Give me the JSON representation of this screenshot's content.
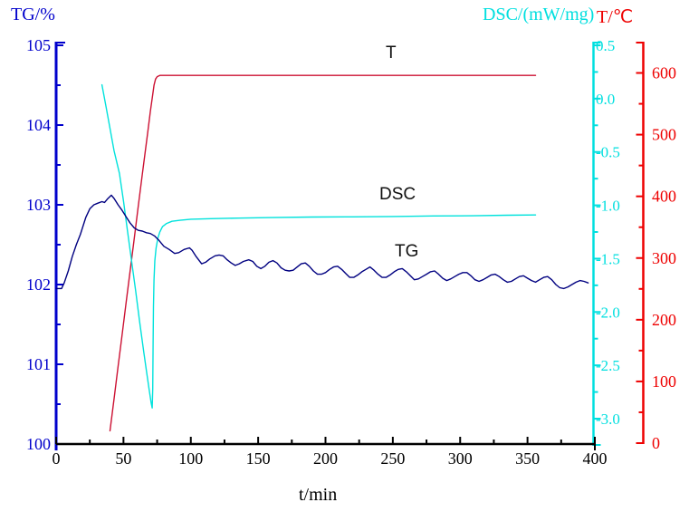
{
  "colors": {
    "background": "#FFFFFF",
    "tg_axis": "#0000CC",
    "tg_curve": "#000080",
    "dsc_axis": "#00DFDF",
    "dsc_curve": "#00E2DC",
    "temp_axis": "#EE0000",
    "temp_curve": "#CC1133",
    "x_axis": "#000000",
    "curve_label_text": "#111111"
  },
  "chart_data": {
    "type": "line",
    "grid": false,
    "legend": "inline-text-labels",
    "x_axis": {
      "title": "t/min",
      "range": [
        0,
        400
      ],
      "tick_values": [
        0,
        50,
        100,
        150,
        200,
        250,
        300,
        350,
        400
      ],
      "tick_labels": [
        "0",
        "50",
        "100",
        "150",
        "200",
        "250",
        "300",
        "350",
        "400"
      ],
      "minor_tick_step": 25
    },
    "y_axes": [
      {
        "id": "tg",
        "title": "TG/%",
        "side": "left",
        "range": [
          100,
          105
        ],
        "tick_values": [
          105,
          104,
          103,
          102,
          101,
          100
        ],
        "tick_labels": [
          "105",
          "104",
          "103",
          "102",
          "101",
          "100"
        ],
        "minor_tick_step": 0.5,
        "color_key": "tg_axis"
      },
      {
        "id": "dsc",
        "title": "DSC/(mW/mg)",
        "side": "right_inner",
        "range": [
          -3.25,
          0.5
        ],
        "tick_values": [
          0.5,
          0,
          -0.5,
          -1,
          -1.5,
          -2,
          -2.5,
          -3
        ],
        "tick_labels": [
          "0.5",
          "0.0",
          "-0.5",
          "-1.0",
          "-1.5",
          "-2.0",
          "-2.5",
          "-3.0"
        ],
        "minor_tick_step": 0.25,
        "color_key": "dsc_axis"
      },
      {
        "id": "temp",
        "title": "T/℃",
        "side": "right_outer",
        "range": [
          0,
          650
        ],
        "tick_values": [
          600,
          500,
          400,
          300,
          200,
          100,
          0
        ],
        "tick_labels": [
          "600",
          "500",
          "400",
          "300",
          "200",
          "100",
          "0"
        ],
        "minor_tick_step": 50,
        "color_key": "temp_axis"
      }
    ],
    "series": [
      {
        "name": "T",
        "y_axis": "temp",
        "color_key": "temp_curve",
        "points": [
          [
            40,
            20
          ],
          [
            43,
            72
          ],
          [
            46,
            124
          ],
          [
            49,
            176
          ],
          [
            52,
            228
          ],
          [
            55,
            280
          ],
          [
            58,
            332
          ],
          [
            61,
            384
          ],
          [
            64,
            436
          ],
          [
            66,
            470
          ],
          [
            68,
            504
          ],
          [
            70,
            538
          ],
          [
            71.5,
            562
          ],
          [
            72.7,
            580
          ],
          [
            73.8,
            590
          ],
          [
            75,
            594
          ],
          [
            77,
            596
          ],
          [
            85,
            596
          ],
          [
            110,
            596
          ],
          [
            150,
            596
          ],
          [
            200,
            596
          ],
          [
            250,
            596
          ],
          [
            300,
            596
          ],
          [
            340,
            596
          ],
          [
            356,
            596
          ]
        ]
      },
      {
        "name": "DSC",
        "y_axis": "dsc",
        "color_key": "dsc_curve",
        "points": [
          [
            34,
            0.13
          ],
          [
            37,
            -0.07
          ],
          [
            40,
            -0.28
          ],
          [
            43,
            -0.49
          ],
          [
            47,
            -0.7
          ],
          [
            50,
            -0.96
          ],
          [
            53,
            -1.24
          ],
          [
            56,
            -1.52
          ],
          [
            59,
            -1.8
          ],
          [
            62,
            -2.09
          ],
          [
            65,
            -2.37
          ],
          [
            67,
            -2.55
          ],
          [
            69,
            -2.72
          ],
          [
            70.5,
            -2.85
          ],
          [
            71.3,
            -2.9
          ],
          [
            71.7,
            -2.72
          ],
          [
            72,
            -2.3
          ],
          [
            72.3,
            -1.95
          ],
          [
            72.7,
            -1.7
          ],
          [
            73.3,
            -1.52
          ],
          [
            74.2,
            -1.4
          ],
          [
            75.5,
            -1.31
          ],
          [
            77,
            -1.25
          ],
          [
            79,
            -1.2
          ],
          [
            82,
            -1.17
          ],
          [
            86,
            -1.15
          ],
          [
            92,
            -1.14
          ],
          [
            100,
            -1.13
          ],
          [
            115,
            -1.125
          ],
          [
            135,
            -1.12
          ],
          [
            160,
            -1.115
          ],
          [
            190,
            -1.11
          ],
          [
            220,
            -1.108
          ],
          [
            250,
            -1.105
          ],
          [
            280,
            -1.1
          ],
          [
            310,
            -1.098
          ],
          [
            335,
            -1.093
          ],
          [
            356,
            -1.09
          ]
        ]
      },
      {
        "name": "TG",
        "y_axis": "tg",
        "color_key": "tg_curve",
        "points": [
          [
            0,
            101.95
          ],
          [
            4,
            101.95
          ],
          [
            6,
            102.02
          ],
          [
            9,
            102.17
          ],
          [
            12,
            102.35
          ],
          [
            15,
            102.5
          ],
          [
            18,
            102.63
          ],
          [
            22,
            102.84
          ],
          [
            25,
            102.95
          ],
          [
            28,
            103.0
          ],
          [
            31,
            103.02
          ],
          [
            34,
            103.04
          ],
          [
            36,
            103.03
          ],
          [
            38,
            103.07
          ],
          [
            41,
            103.12
          ],
          [
            43,
            103.08
          ],
          [
            46,
            103.0
          ],
          [
            49,
            102.93
          ],
          [
            52,
            102.85
          ],
          [
            55,
            102.77
          ],
          [
            58,
            102.71
          ],
          [
            61,
            102.68
          ],
          [
            64,
            102.67
          ],
          [
            67,
            102.65
          ],
          [
            70,
            102.64
          ],
          [
            73,
            102.61
          ],
          [
            76,
            102.56
          ],
          [
            80,
            102.48
          ],
          [
            84,
            102.44
          ],
          [
            88,
            102.39
          ],
          [
            91,
            102.4
          ],
          [
            95,
            102.44
          ],
          [
            99,
            102.46
          ],
          [
            101,
            102.43
          ],
          [
            104,
            102.35
          ],
          [
            108,
            102.26
          ],
          [
            111,
            102.28
          ],
          [
            114,
            102.32
          ],
          [
            118,
            102.36
          ],
          [
            121,
            102.37
          ],
          [
            124,
            102.36
          ],
          [
            127,
            102.31
          ],
          [
            130,
            102.27
          ],
          [
            133,
            102.24
          ],
          [
            136,
            102.26
          ],
          [
            139,
            102.29
          ],
          [
            143,
            102.31
          ],
          [
            146,
            102.29
          ],
          [
            149,
            102.23
          ],
          [
            152,
            102.2
          ],
          [
            155,
            102.23
          ],
          [
            158,
            102.28
          ],
          [
            161,
            102.3
          ],
          [
            164,
            102.27
          ],
          [
            167,
            102.21
          ],
          [
            170,
            102.18
          ],
          [
            173,
            102.17
          ],
          [
            176,
            102.18
          ],
          [
            179,
            102.22
          ],
          [
            182,
            102.26
          ],
          [
            185,
            102.27
          ],
          [
            188,
            102.23
          ],
          [
            191,
            102.17
          ],
          [
            194,
            102.13
          ],
          [
            197,
            102.13
          ],
          [
            200,
            102.15
          ],
          [
            203,
            102.19
          ],
          [
            206,
            102.22
          ],
          [
            209,
            102.23
          ],
          [
            212,
            102.19
          ],
          [
            215,
            102.14
          ],
          [
            218,
            102.09
          ],
          [
            221,
            102.09
          ],
          [
            224,
            102.12
          ],
          [
            227,
            102.16
          ],
          [
            230,
            102.19
          ],
          [
            233,
            102.22
          ],
          [
            236,
            102.18
          ],
          [
            239,
            102.13
          ],
          [
            242,
            102.09
          ],
          [
            245,
            102.09
          ],
          [
            248,
            102.12
          ],
          [
            251,
            102.16
          ],
          [
            254,
            102.19
          ],
          [
            257,
            102.2
          ],
          [
            260,
            102.16
          ],
          [
            263,
            102.11
          ],
          [
            266,
            102.06
          ],
          [
            269,
            102.07
          ],
          [
            272,
            102.1
          ],
          [
            275,
            102.13
          ],
          [
            278,
            102.16
          ],
          [
            281,
            102.17
          ],
          [
            284,
            102.13
          ],
          [
            287,
            102.08
          ],
          [
            290,
            102.05
          ],
          [
            293,
            102.07
          ],
          [
            296,
            102.1
          ],
          [
            299,
            102.13
          ],
          [
            302,
            102.15
          ],
          [
            305,
            102.15
          ],
          [
            308,
            102.11
          ],
          [
            311,
            102.06
          ],
          [
            314,
            102.04
          ],
          [
            317,
            102.06
          ],
          [
            320,
            102.09
          ],
          [
            323,
            102.12
          ],
          [
            326,
            102.13
          ],
          [
            329,
            102.1
          ],
          [
            332,
            102.06
          ],
          [
            335,
            102.03
          ],
          [
            338,
            102.04
          ],
          [
            341,
            102.07
          ],
          [
            344,
            102.1
          ],
          [
            347,
            102.11
          ],
          [
            350,
            102.08
          ],
          [
            353,
            102.05
          ],
          [
            356,
            102.03
          ],
          [
            359,
            102.06
          ],
          [
            362,
            102.09
          ],
          [
            365,
            102.1
          ],
          [
            368,
            102.06
          ],
          [
            371,
            102.0
          ],
          [
            374,
            101.96
          ],
          [
            377,
            101.95
          ],
          [
            380,
            101.97
          ],
          [
            383,
            102.0
          ],
          [
            386,
            102.03
          ],
          [
            389,
            102.05
          ],
          [
            392,
            102.04
          ],
          [
            395,
            102.02
          ]
        ]
      }
    ]
  }
}
